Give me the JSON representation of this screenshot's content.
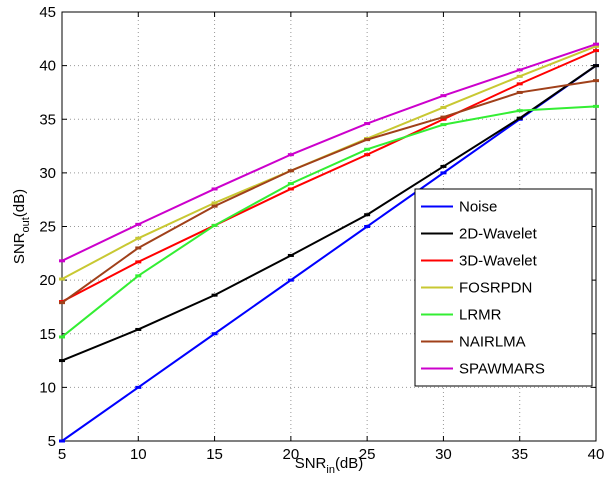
{
  "chart_data": {
    "type": "line",
    "xlabel": [
      "SNR",
      "in",
      "(dB)"
    ],
    "ylabel": [
      "SNR",
      "out",
      "(dB)"
    ],
    "x": [
      5,
      10,
      15,
      20,
      25,
      30,
      35,
      40
    ],
    "series": [
      {
        "name": "Noise",
        "color": "#0000ff",
        "values": [
          5,
          10,
          15,
          20,
          25,
          30,
          35,
          40
        ]
      },
      {
        "name": "2D-Wavelet",
        "color": "#000000",
        "values": [
          12.5,
          15.4,
          18.6,
          22.3,
          26.1,
          30.6,
          35.1,
          40.0
        ]
      },
      {
        "name": "3D-Wavelet",
        "color": "#ff0000",
        "values": [
          18.0,
          21.7,
          25.1,
          28.5,
          31.7,
          35.0,
          38.3,
          41.4
        ]
      },
      {
        "name": "FOSRPDN",
        "color": "#c8c832",
        "values": [
          20.1,
          23.9,
          27.2,
          30.2,
          33.2,
          36.1,
          39.0,
          41.8
        ]
      },
      {
        "name": "LRMR",
        "color": "#33ee33",
        "values": [
          14.7,
          20.4,
          25.1,
          29.0,
          32.2,
          34.5,
          35.8,
          36.2
        ]
      },
      {
        "name": "NAIRLMA",
        "color": "#a0401a",
        "values": [
          17.9,
          23.0,
          26.9,
          30.2,
          33.1,
          35.2,
          37.5,
          38.6
        ]
      },
      {
        "name": "SPAWMARS",
        "color": "#cc00cc",
        "values": [
          21.8,
          25.2,
          28.5,
          31.7,
          34.6,
          37.2,
          39.6,
          42.0
        ]
      }
    ],
    "xlim": [
      5,
      40
    ],
    "xticks": [
      5,
      10,
      15,
      20,
      25,
      30,
      35,
      40
    ],
    "ylim": [
      5,
      45
    ],
    "yticks": [
      5,
      10,
      15,
      20,
      25,
      30,
      35,
      40,
      45
    ],
    "grid": true,
    "legend": "lower-right"
  }
}
